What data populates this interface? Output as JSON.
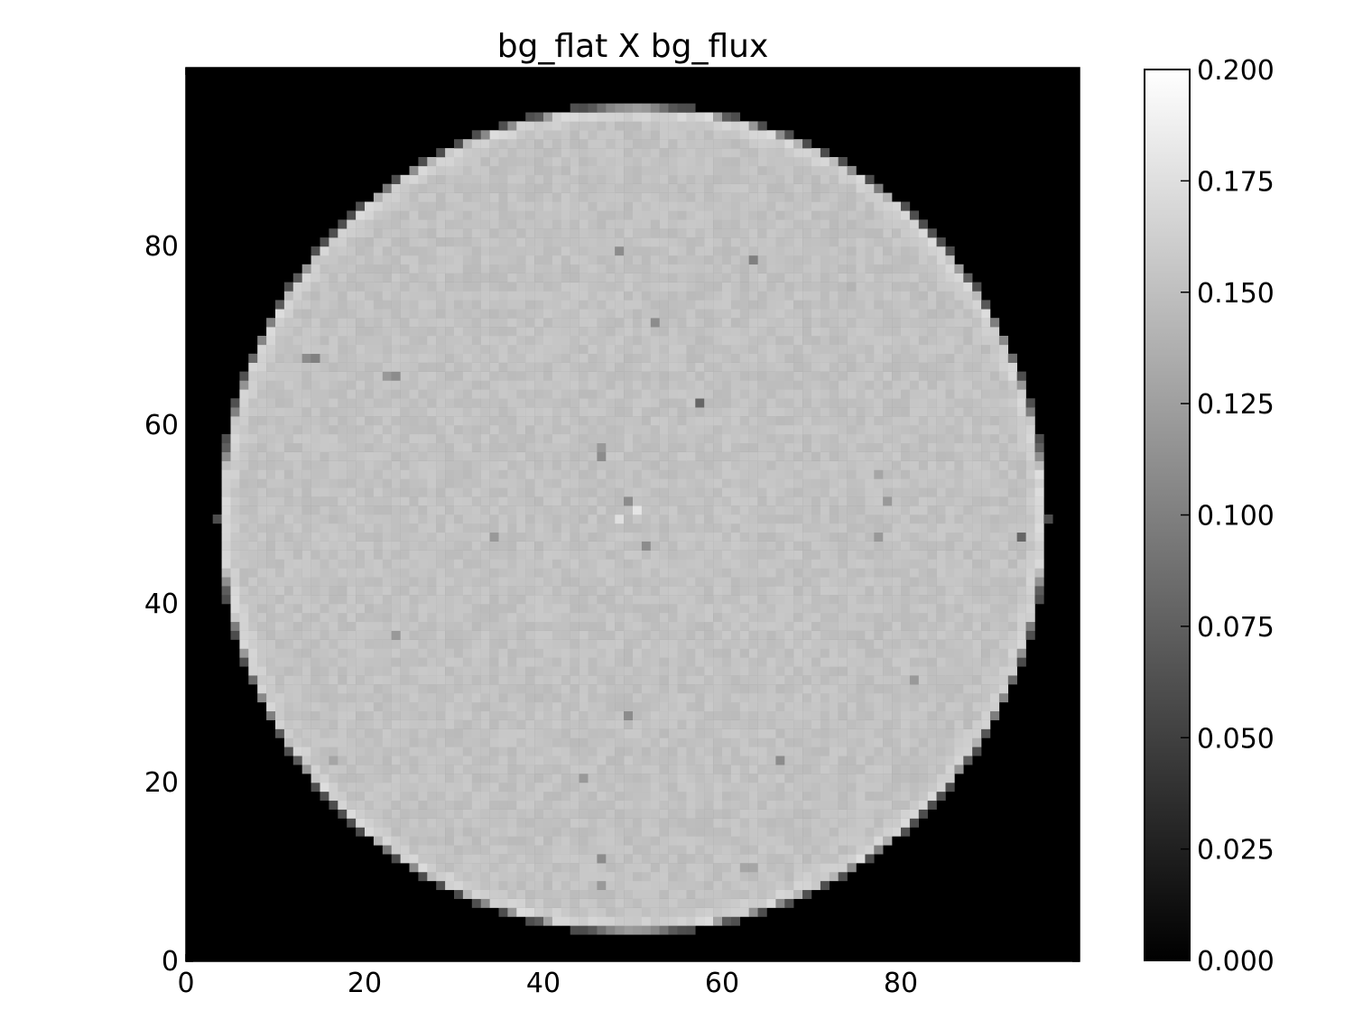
{
  "chart_data": {
    "type": "heatmap",
    "title": "bg_flat X bg_flux",
    "xlabel": "",
    "ylabel": "",
    "grid": false,
    "colormap": "gray",
    "xlim": [
      0,
      100
    ],
    "ylim": [
      0,
      100
    ],
    "x_ticks": [
      {
        "value": 0,
        "label": "0"
      },
      {
        "value": 20,
        "label": "20"
      },
      {
        "value": 40,
        "label": "40"
      },
      {
        "value": 60,
        "label": "60"
      },
      {
        "value": 80,
        "label": "80"
      }
    ],
    "y_ticks": [
      {
        "value": 0,
        "label": "0"
      },
      {
        "value": 20,
        "label": "20"
      },
      {
        "value": 40,
        "label": "40"
      },
      {
        "value": 60,
        "label": "60"
      },
      {
        "value": 80,
        "label": "80"
      }
    ],
    "grid_shape": [
      100,
      100
    ],
    "disk": {
      "center_x": 50,
      "center_y": 49.5,
      "radius": 46.5,
      "interior_value": 0.152,
      "rim_value": 0.175,
      "outside_value": 0.0
    },
    "features": [
      {
        "x": 48,
        "y": 79,
        "value": 0.11
      },
      {
        "x": 63,
        "y": 78,
        "value": 0.1
      },
      {
        "x": 74,
        "y": 75,
        "value": 0.14
      },
      {
        "x": 52,
        "y": 71,
        "value": 0.11
      },
      {
        "x": 14,
        "y": 67,
        "value": 0.1
      },
      {
        "x": 13,
        "y": 67,
        "value": 0.11
      },
      {
        "x": 23,
        "y": 65,
        "value": 0.11
      },
      {
        "x": 22,
        "y": 65,
        "value": 0.12
      },
      {
        "x": 57,
        "y": 62,
        "value": 0.08
      },
      {
        "x": 46,
        "y": 57,
        "value": 0.12
      },
      {
        "x": 46,
        "y": 56,
        "value": 0.11
      },
      {
        "x": 77,
        "y": 54,
        "value": 0.13
      },
      {
        "x": 49,
        "y": 51,
        "value": 0.11
      },
      {
        "x": 78,
        "y": 51,
        "value": 0.12
      },
      {
        "x": 50,
        "y": 50,
        "value": 0.18
      },
      {
        "x": 48,
        "y": 49,
        "value": 0.175
      },
      {
        "x": 34,
        "y": 47,
        "value": 0.12
      },
      {
        "x": 77,
        "y": 47,
        "value": 0.12
      },
      {
        "x": 93,
        "y": 47,
        "value": 0.08
      },
      {
        "x": 51,
        "y": 46,
        "value": 0.11
      },
      {
        "x": 23,
        "y": 36,
        "value": 0.12
      },
      {
        "x": 81,
        "y": 31,
        "value": 0.12
      },
      {
        "x": 49,
        "y": 27,
        "value": 0.11
      },
      {
        "x": 66,
        "y": 22,
        "value": 0.11
      },
      {
        "x": 16,
        "y": 22,
        "value": 0.13
      },
      {
        "x": 44,
        "y": 20,
        "value": 0.12
      },
      {
        "x": 46,
        "y": 11,
        "value": 0.11
      },
      {
        "x": 62,
        "y": 10,
        "value": 0.13
      },
      {
        "x": 63,
        "y": 10,
        "value": 0.13
      },
      {
        "x": 46,
        "y": 8,
        "value": 0.12
      }
    ]
  },
  "colorbar": {
    "vmin": 0.0,
    "vmax": 0.2,
    "ticks": [
      {
        "value": 0.0,
        "label": "0.000"
      },
      {
        "value": 0.025,
        "label": "0.025"
      },
      {
        "value": 0.05,
        "label": "0.050"
      },
      {
        "value": 0.075,
        "label": "0.075"
      },
      {
        "value": 0.1,
        "label": "0.100"
      },
      {
        "value": 0.125,
        "label": "0.125"
      },
      {
        "value": 0.15,
        "label": "0.150"
      },
      {
        "value": 0.175,
        "label": "0.175"
      },
      {
        "value": 0.2,
        "label": "0.200"
      }
    ]
  }
}
